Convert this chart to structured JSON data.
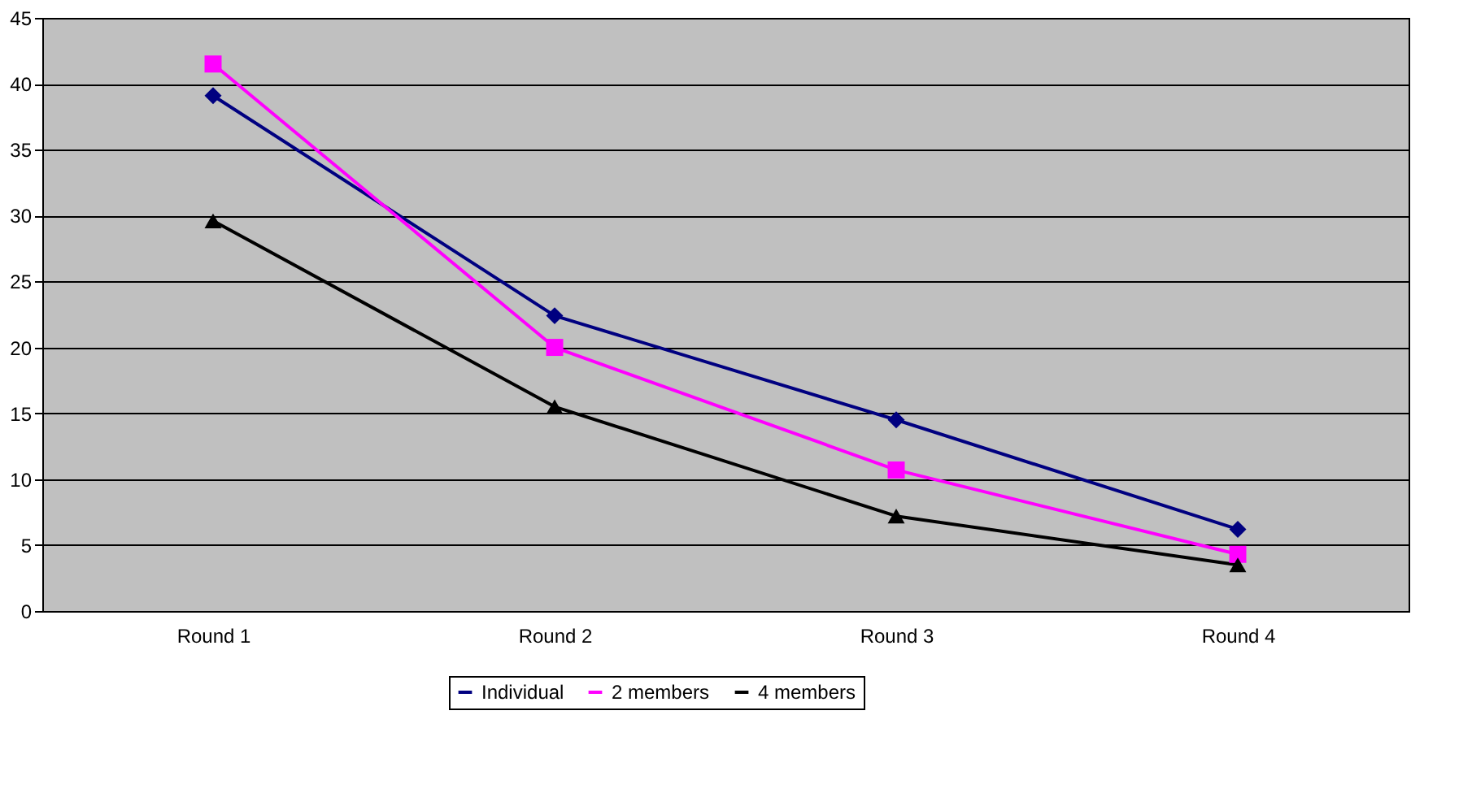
{
  "chart_data": {
    "type": "line",
    "categories": [
      "Round 1",
      "Round 2",
      "Round 3",
      "Round 4"
    ],
    "series": [
      {
        "name": "Individual",
        "color": "#000080",
        "marker": "diamond",
        "values": [
          39.1,
          22.4,
          14.5,
          6.2
        ]
      },
      {
        "name": "2 members",
        "color": "#ff00ff",
        "marker": "square",
        "values": [
          41.5,
          20,
          10.7,
          4.3
        ]
      },
      {
        "name": "4 members",
        "color": "#000000",
        "marker": "triangle",
        "values": [
          29.6,
          15.5,
          7.2,
          3.5
        ]
      }
    ],
    "ylim": [
      0,
      45
    ],
    "yticks": [
      0,
      5,
      10,
      15,
      20,
      25,
      30,
      35,
      40,
      45
    ],
    "grid": "y",
    "legend": "bottom"
  }
}
